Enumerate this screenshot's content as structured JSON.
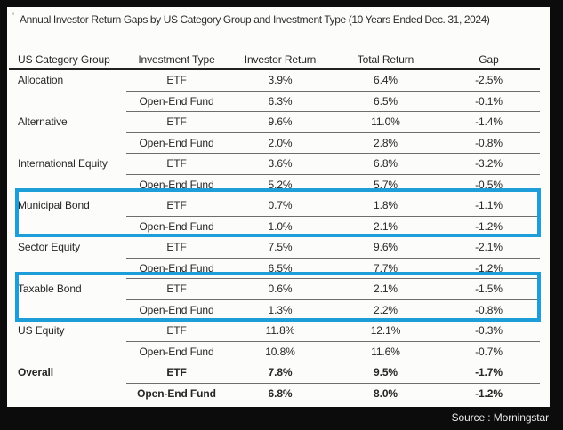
{
  "title_tick": "'",
  "title": "Annual Investor Return Gaps by US Category Group and Investment Type (10 Years Ended Dec. 31, 2024)",
  "footer": {
    "source_label": "Source : Morningstar"
  },
  "colors": {
    "highlight_blue": "#1e9ed9",
    "frame_black": "#0c0c0c",
    "card_white": "#fcfcfb",
    "text_dark": "#262626",
    "row_line_gray": "#6e6e6e"
  },
  "table": {
    "headers": [
      "US Category Group",
      "Investment Type",
      "Investor Return",
      "Total Return",
      "Gap"
    ],
    "rows": [
      {
        "category": "Allocation",
        "type": "ETF",
        "investor_return": "3.9%",
        "total_return": "6.4%",
        "gap": "-2.5%"
      },
      {
        "category": "",
        "type": "Open-End Fund",
        "investor_return": "6.3%",
        "total_return": "6.5%",
        "gap": "-0.1%"
      },
      {
        "category": "Alternative",
        "type": "ETF",
        "investor_return": "9.6%",
        "total_return": "11.0%",
        "gap": "-1.4%"
      },
      {
        "category": "",
        "type": "Open-End Fund",
        "investor_return": "2.0%",
        "total_return": "2.8%",
        "gap": "-0.8%"
      },
      {
        "category": "International Equity",
        "type": "ETF",
        "investor_return": "3.6%",
        "total_return": "6.8%",
        "gap": "-3.2%"
      },
      {
        "category": "",
        "type": "Open-End Fund",
        "investor_return": "5.2%",
        "total_return": "5.7%",
        "gap": "-0.5%"
      },
      {
        "category": "Municipal Bond",
        "type": "ETF",
        "investor_return": "0.7%",
        "total_return": "1.8%",
        "gap": "-1.1%"
      },
      {
        "category": "",
        "type": "Open-End Fund",
        "investor_return": "1.0%",
        "total_return": "2.1%",
        "gap": "-1.2%"
      },
      {
        "category": "Sector Equity",
        "type": "ETF",
        "investor_return": "7.5%",
        "total_return": "9.6%",
        "gap": "-2.1%"
      },
      {
        "category": "",
        "type": "Open-End Fund",
        "investor_return": "6.5%",
        "total_return": "7.7%",
        "gap": "-1.2%"
      },
      {
        "category": "Taxable Bond",
        "type": "ETF",
        "investor_return": "0.6%",
        "total_return": "2.1%",
        "gap": "-1.5%"
      },
      {
        "category": "",
        "type": "Open-End Fund",
        "investor_return": "1.3%",
        "total_return": "2.2%",
        "gap": "-0.8%"
      },
      {
        "category": "US Equity",
        "type": "ETF",
        "investor_return": "11.8%",
        "total_return": "12.1%",
        "gap": "-0.3%"
      },
      {
        "category": "",
        "type": "Open-End Fund",
        "investor_return": "10.8%",
        "total_return": "11.6%",
        "gap": "-0.7%"
      },
      {
        "category": "Overall",
        "type": "ETF",
        "investor_return": "7.8%",
        "total_return": "9.5%",
        "gap": "-1.7%"
      },
      {
        "category": "",
        "type": "Open-End Fund",
        "investor_return": "6.8%",
        "total_return": "8.0%",
        "gap": "-1.2%"
      }
    ],
    "highlighted_groups": [
      "Municipal Bond",
      "Taxable Bond"
    ],
    "bold_group": "Overall"
  },
  "chart_data": {
    "type": "table",
    "title": "Annual Investor Return Gaps by US Category Group and Investment Type (10 Years Ended Dec. 31, 2024)",
    "columns": [
      "US Category Group",
      "Investment Type",
      "Investor Return (%)",
      "Total Return (%)",
      "Gap (%)"
    ],
    "rows": [
      [
        "Allocation",
        "ETF",
        3.9,
        6.4,
        -2.5
      ],
      [
        "Allocation",
        "Open-End Fund",
        6.3,
        6.5,
        -0.1
      ],
      [
        "Alternative",
        "ETF",
        9.6,
        11.0,
        -1.4
      ],
      [
        "Alternative",
        "Open-End Fund",
        2.0,
        2.8,
        -0.8
      ],
      [
        "International Equity",
        "ETF",
        3.6,
        6.8,
        -3.2
      ],
      [
        "International Equity",
        "Open-End Fund",
        5.2,
        5.7,
        -0.5
      ],
      [
        "Municipal Bond",
        "ETF",
        0.7,
        1.8,
        -1.1
      ],
      [
        "Municipal Bond",
        "Open-End Fund",
        1.0,
        2.1,
        -1.2
      ],
      [
        "Sector Equity",
        "ETF",
        7.5,
        9.6,
        -2.1
      ],
      [
        "Sector Equity",
        "Open-End Fund",
        6.5,
        7.7,
        -1.2
      ],
      [
        "Taxable Bond",
        "ETF",
        0.6,
        2.1,
        -1.5
      ],
      [
        "Taxable Bond",
        "Open-End Fund",
        1.3,
        2.2,
        -0.8
      ],
      [
        "US Equity",
        "ETF",
        11.8,
        12.1,
        -0.3
      ],
      [
        "US Equity",
        "Open-End Fund",
        10.8,
        11.6,
        -0.7
      ],
      [
        "Overall",
        "ETF",
        7.8,
        9.5,
        -1.7
      ],
      [
        "Overall",
        "Open-End Fund",
        6.8,
        8.0,
        -1.2
      ]
    ],
    "highlighted_groups": [
      "Municipal Bond",
      "Taxable Bond"
    ],
    "bold_rows": [
      "Overall"
    ],
    "source": "Morningstar"
  }
}
